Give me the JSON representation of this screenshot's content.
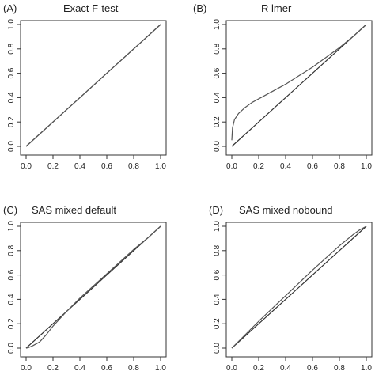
{
  "figure": {
    "line_color": "#333333",
    "curve_color": "#555555"
  },
  "chart_data": [
    {
      "type": "line",
      "panel_letter": "(A)",
      "title": "Exact F-test",
      "xlim": [
        0,
        1
      ],
      "ylim": [
        0,
        1
      ],
      "xticks": [
        "0.0",
        "0.2",
        "0.4",
        "0.6",
        "0.8",
        "1.0"
      ],
      "yticks": [
        "0.0",
        "0.2",
        "0.4",
        "0.6",
        "0.8",
        "1.0"
      ],
      "grid": false,
      "series": [
        {
          "x": [
            0,
            0.2,
            0.4,
            0.6,
            0.8,
            1
          ],
          "y": [
            0,
            0.2,
            0.4,
            0.6,
            0.8,
            1
          ]
        },
        {
          "x": [
            0,
            0.2,
            0.4,
            0.6,
            0.8,
            1
          ],
          "y": [
            0,
            0.2,
            0.4,
            0.6,
            0.8,
            1
          ]
        }
      ]
    },
    {
      "type": "line",
      "panel_letter": "(B)",
      "title": "R lmer",
      "xlim": [
        0,
        1
      ],
      "ylim": [
        0,
        1
      ],
      "xticks": [
        "0.0",
        "0.2",
        "0.4",
        "0.6",
        "0.8",
        "1.0"
      ],
      "yticks": [
        "0.0",
        "0.2",
        "0.4",
        "0.6",
        "0.8",
        "1.0"
      ],
      "grid": false,
      "series": [
        {
          "x": [
            0,
            0.2,
            0.4,
            0.6,
            0.8,
            1
          ],
          "y": [
            0,
            0.2,
            0.4,
            0.6,
            0.8,
            1
          ]
        },
        {
          "x": [
            0,
            0.005,
            0.02,
            0.05,
            0.1,
            0.15,
            0.2,
            0.3,
            0.4,
            0.5,
            0.6,
            0.7,
            0.8,
            0.9,
            1
          ],
          "y": [
            0.05,
            0.15,
            0.22,
            0.27,
            0.32,
            0.36,
            0.39,
            0.45,
            0.51,
            0.58,
            0.65,
            0.73,
            0.81,
            0.9,
            1.0
          ]
        }
      ]
    },
    {
      "type": "line",
      "panel_letter": "(C)",
      "title": "SAS mixed default",
      "xlim": [
        0,
        1
      ],
      "ylim": [
        0,
        1
      ],
      "xticks": [
        "0.0",
        "0.2",
        "0.4",
        "0.6",
        "0.8",
        "1.0"
      ],
      "yticks": [
        "0.0",
        "0.2",
        "0.4",
        "0.6",
        "0.8",
        "1.0"
      ],
      "grid": false,
      "series": [
        {
          "x": [
            0,
            0.2,
            0.4,
            0.6,
            0.8,
            1
          ],
          "y": [
            0,
            0.2,
            0.4,
            0.6,
            0.8,
            1
          ]
        },
        {
          "x": [
            0,
            0.02,
            0.05,
            0.1,
            0.15,
            0.2,
            0.3,
            0.4,
            0.5,
            0.6,
            0.7,
            0.8,
            0.9,
            1
          ],
          "y": [
            0,
            0.005,
            0.02,
            0.05,
            0.11,
            0.18,
            0.3,
            0.41,
            0.51,
            0.61,
            0.71,
            0.81,
            0.9,
            1
          ]
        }
      ]
    },
    {
      "type": "line",
      "panel_letter": "(D)",
      "title": "SAS mixed nobound",
      "xlim": [
        0,
        1
      ],
      "ylim": [
        0,
        1
      ],
      "xticks": [
        "0.0",
        "0.2",
        "0.4",
        "0.6",
        "0.8",
        "1.0"
      ],
      "yticks": [
        "0.0",
        "0.2",
        "0.4",
        "0.6",
        "0.8",
        "1.0"
      ],
      "grid": false,
      "series": [
        {
          "x": [
            0,
            0.2,
            0.4,
            0.6,
            0.8,
            1
          ],
          "y": [
            0,
            0.2,
            0.4,
            0.6,
            0.8,
            1
          ]
        },
        {
          "x": [
            0,
            0.2,
            0.4,
            0.6,
            0.8,
            0.9,
            0.95,
            1
          ],
          "y": [
            0,
            0.22,
            0.43,
            0.64,
            0.84,
            0.93,
            0.97,
            1
          ]
        }
      ]
    }
  ]
}
